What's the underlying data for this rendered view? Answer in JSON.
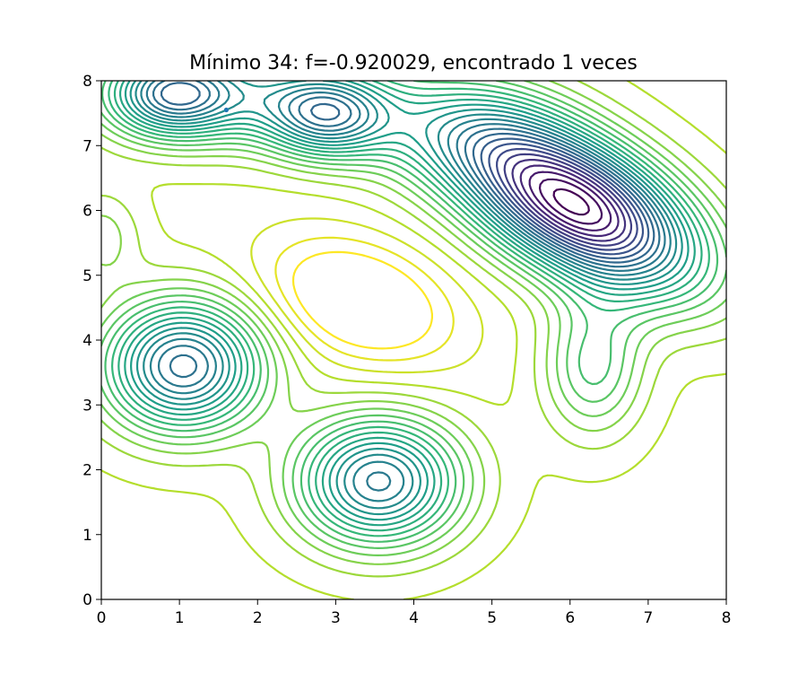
{
  "chart_data": {
    "type": "contour",
    "title": "Mínimo 34: f=-0.920029, encontrado 1 veces",
    "xlabel": "",
    "ylabel": "",
    "xlim": [
      0,
      8
    ],
    "ylim": [
      0,
      8
    ],
    "x_ticks": [
      "0",
      "1",
      "2",
      "3",
      "4",
      "5",
      "6",
      "7",
      "8"
    ],
    "y_ticks": [
      "0",
      "1",
      "2",
      "3",
      "4",
      "5",
      "6",
      "7",
      "8"
    ],
    "grid": false,
    "colormap": "viridis",
    "levels": 28,
    "features": [
      {
        "kind": "minimum",
        "x": 6.0,
        "y": 6.1
      },
      {
        "kind": "minimum",
        "x": 1.05,
        "y": 3.6
      },
      {
        "kind": "minimum",
        "x": 3.55,
        "y": 1.82
      },
      {
        "kind": "minimum",
        "x": 2.9,
        "y": 7.45
      },
      {
        "kind": "minimum",
        "x": 0.88,
        "y": 7.8
      },
      {
        "kind": "point",
        "x": 1.6,
        "y": 7.55
      }
    ],
    "colors": {
      "deep": "#440154",
      "mid": "#21908d",
      "high": "#fde725"
    }
  }
}
